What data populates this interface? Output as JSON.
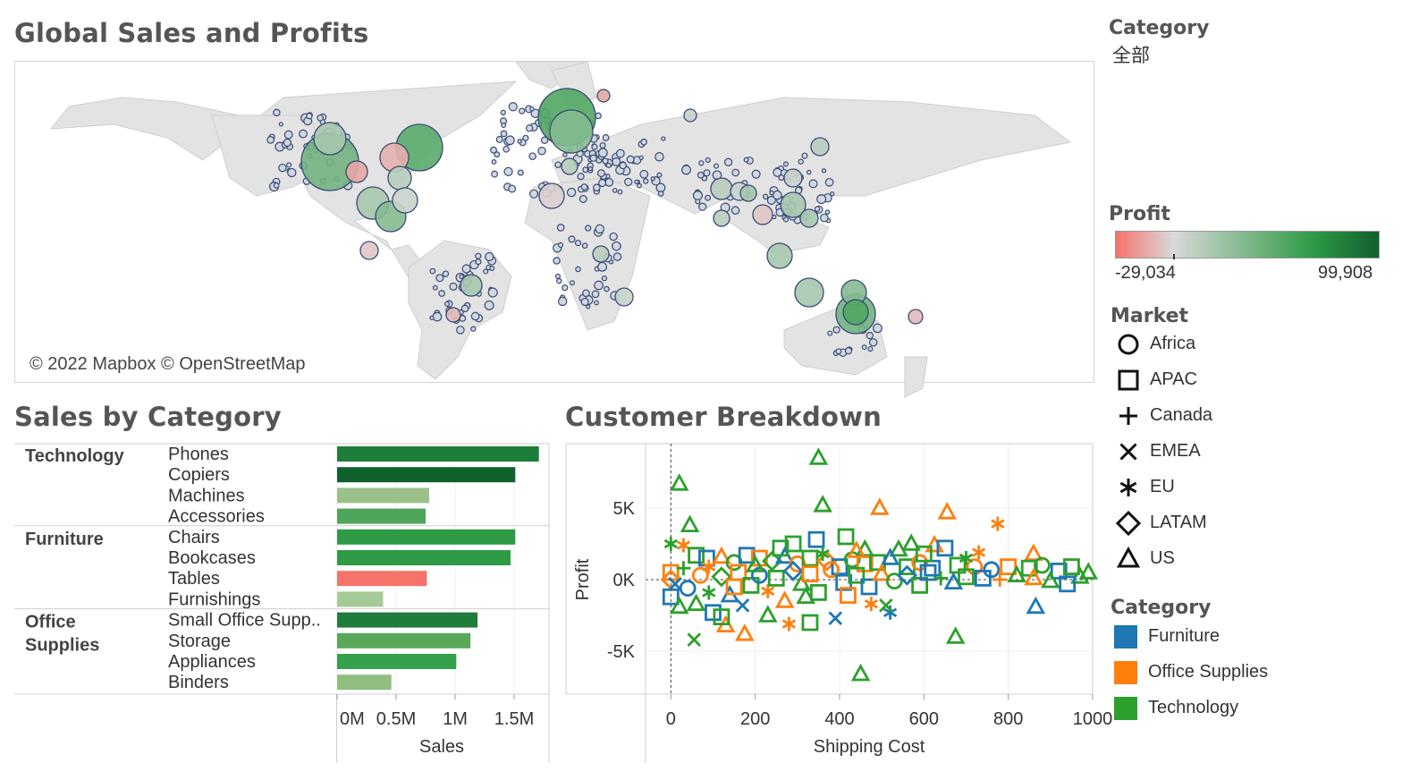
{
  "titles": {
    "map": "Global Sales and Profits",
    "bar": "Sales by Category",
    "scatter": "Customer Breakdown"
  },
  "map": {
    "attribution": "© 2022 Mapbox © OpenStreetMap"
  },
  "filter": {
    "title": "Category",
    "value": "全部"
  },
  "profit_legend": {
    "title": "Profit",
    "min_label": "-29,034",
    "max_label": "99,908",
    "colors": [
      "#f5736b",
      "#d9d9d9",
      "#2e9a46",
      "#10602e"
    ]
  },
  "market_legend": {
    "title": "Market",
    "items": [
      {
        "label": "Africa",
        "shape": "circle-icon"
      },
      {
        "label": "APAC",
        "shape": "square-icon"
      },
      {
        "label": "Canada",
        "shape": "plus-icon"
      },
      {
        "label": "EMEA",
        "shape": "cross-icon"
      },
      {
        "label": "EU",
        "shape": "asterisk-icon"
      },
      {
        "label": "LATAM",
        "shape": "diamond-icon"
      },
      {
        "label": "US",
        "shape": "triangle-icon"
      }
    ]
  },
  "category_legend": {
    "title": "Category",
    "items": [
      {
        "label": "Furniture",
        "color": "#1f77b4"
      },
      {
        "label": "Office Supplies",
        "color": "#ff7f0e"
      },
      {
        "label": "Technology",
        "color": "#2ca02c"
      }
    ]
  },
  "chart_data": [
    {
      "type": "bar",
      "orientation": "horizontal",
      "title": "Sales by Category",
      "xlabel": "Sales",
      "xlim": [
        0,
        1.8
      ],
      "xticks": [
        "0M",
        "0.5M",
        "1M",
        "1.5M"
      ],
      "groups": [
        {
          "name": "Technology",
          "items": [
            {
              "label": "Phones",
              "sales": 1.71,
              "color": "#1e7d3a"
            },
            {
              "label": "Copiers",
              "sales": 1.51,
              "color": "#10602e"
            },
            {
              "label": "Machines",
              "sales": 0.78,
              "color": "#9ac18a"
            },
            {
              "label": "Accessories",
              "sales": 0.75,
              "color": "#4ea55a"
            }
          ]
        },
        {
          "name": "Furniture",
          "items": [
            {
              "label": "Chairs",
              "sales": 1.51,
              "color": "#2e9a46"
            },
            {
              "label": "Bookcases",
              "sales": 1.47,
              "color": "#2e9a46"
            },
            {
              "label": "Tables",
              "sales": 0.76,
              "color": "#f5736b"
            },
            {
              "label": "Furnishings",
              "sales": 0.39,
              "color": "#a6c998"
            }
          ]
        },
        {
          "name": "Office Supplies",
          "items": [
            {
              "label": "Small Office Supp..",
              "sales": 1.19,
              "color": "#1e7d3a"
            },
            {
              "label": "Storage",
              "sales": 1.13,
              "color": "#5aa95a"
            },
            {
              "label": "Appliances",
              "sales": 1.01,
              "color": "#34a14b"
            },
            {
              "label": "Binders",
              "sales": 0.46,
              "color": "#8fbe7f"
            }
          ]
        }
      ]
    },
    {
      "type": "scatter",
      "title": "Customer Breakdown",
      "xlabel": "Shipping Cost",
      "ylabel": "Profit",
      "xlim": [
        -60,
        1000
      ],
      "ylim": [
        -8000,
        9500
      ],
      "xticks": [
        "0",
        "200",
        "400",
        "600",
        "800",
        "1000"
      ],
      "yticks": [
        "5K",
        "0K",
        "-5K"
      ],
      "grid": true,
      "legend": "right",
      "points": [
        {
          "x": 350,
          "y": 8500,
          "series": "Technology",
          "shape": "triangle"
        },
        {
          "x": 20,
          "y": 6700,
          "series": "Technology",
          "shape": "triangle"
        },
        {
          "x": 45,
          "y": 3800,
          "series": "Technology",
          "shape": "triangle"
        },
        {
          "x": 360,
          "y": 5200,
          "series": "Technology",
          "shape": "triangle"
        },
        {
          "x": 495,
          "y": 5000,
          "series": "Office Supplies",
          "shape": "triangle"
        },
        {
          "x": 655,
          "y": 4700,
          "series": "Office Supplies",
          "shape": "triangle"
        },
        {
          "x": 775,
          "y": 3900,
          "series": "Office Supplies",
          "shape": "asterisk"
        },
        {
          "x": 415,
          "y": 3000,
          "series": "Technology",
          "shape": "square"
        },
        {
          "x": 345,
          "y": 2800,
          "series": "Furniture",
          "shape": "square"
        },
        {
          "x": 290,
          "y": 2500,
          "series": "Technology",
          "shape": "square"
        },
        {
          "x": 0,
          "y": 2500,
          "series": "Technology",
          "shape": "asterisk"
        },
        {
          "x": 30,
          "y": 2400,
          "series": "Office Supplies",
          "shape": "asterisk"
        },
        {
          "x": 570,
          "y": 2500,
          "series": "Technology",
          "shape": "triangle"
        },
        {
          "x": 625,
          "y": 2400,
          "series": "Office Supplies",
          "shape": "triangle"
        },
        {
          "x": 650,
          "y": 2200,
          "series": "Furniture",
          "shape": "square"
        },
        {
          "x": 730,
          "y": 1900,
          "series": "Office Supplies",
          "shape": "asterisk"
        },
        {
          "x": 860,
          "y": 1800,
          "series": "Office Supplies",
          "shape": "triangle"
        },
        {
          "x": 540,
          "y": 2100,
          "series": "Technology",
          "shape": "triangle"
        },
        {
          "x": 460,
          "y": 2100,
          "series": "Technology",
          "shape": "triangle"
        },
        {
          "x": 60,
          "y": 1700,
          "series": "Technology",
          "shape": "square"
        },
        {
          "x": 85,
          "y": 1500,
          "series": "Furniture",
          "shape": "square"
        },
        {
          "x": 120,
          "y": 1600,
          "series": "Office Supplies",
          "shape": "triangle"
        },
        {
          "x": 150,
          "y": 1200,
          "series": "Technology",
          "shape": "circle"
        },
        {
          "x": 180,
          "y": 1700,
          "series": "Furniture",
          "shape": "square"
        },
        {
          "x": 210,
          "y": 1500,
          "series": "Office Supplies",
          "shape": "square"
        },
        {
          "x": 240,
          "y": 1300,
          "series": "Technology",
          "shape": "diamond"
        },
        {
          "x": 270,
          "y": 1600,
          "series": "Furniture",
          "shape": "triangle"
        },
        {
          "x": 300,
          "y": 1100,
          "series": "Office Supplies",
          "shape": "circle"
        },
        {
          "x": 330,
          "y": 1500,
          "series": "Technology",
          "shape": "square"
        },
        {
          "x": 370,
          "y": 1300,
          "series": "Office Supplies",
          "shape": "diamond"
        },
        {
          "x": 400,
          "y": 900,
          "series": "Furniture",
          "shape": "square"
        },
        {
          "x": 430,
          "y": 1400,
          "series": "Technology",
          "shape": "circle"
        },
        {
          "x": 460,
          "y": 1100,
          "series": "Office Supplies",
          "shape": "square"
        },
        {
          "x": 490,
          "y": 1200,
          "series": "Technology",
          "shape": "square"
        },
        {
          "x": 520,
          "y": 1500,
          "series": "Furniture",
          "shape": "triangle"
        },
        {
          "x": 560,
          "y": 900,
          "series": "Technology",
          "shape": "square"
        },
        {
          "x": 590,
          "y": 1200,
          "series": "Office Supplies",
          "shape": "circle"
        },
        {
          "x": 620,
          "y": 800,
          "series": "Furniture",
          "shape": "square"
        },
        {
          "x": 680,
          "y": 1000,
          "series": "Technology",
          "shape": "square"
        },
        {
          "x": 720,
          "y": 900,
          "series": "Office Supplies",
          "shape": "circle"
        },
        {
          "x": 760,
          "y": 700,
          "series": "Furniture",
          "shape": "circle"
        },
        {
          "x": 800,
          "y": 900,
          "series": "Office Supplies",
          "shape": "square"
        },
        {
          "x": 850,
          "y": 800,
          "series": "Technology",
          "shape": "square"
        },
        {
          "x": 880,
          "y": 1000,
          "series": "Technology",
          "shape": "circle"
        },
        {
          "x": 920,
          "y": 600,
          "series": "Furniture",
          "shape": "square"
        },
        {
          "x": 950,
          "y": 900,
          "series": "Technology",
          "shape": "square"
        },
        {
          "x": 990,
          "y": 500,
          "series": "Technology",
          "shape": "triangle"
        },
        {
          "x": 970,
          "y": 200,
          "series": "Technology",
          "shape": "triangle"
        },
        {
          "x": 0,
          "y": 500,
          "series": "Office Supplies",
          "shape": "square"
        },
        {
          "x": 0,
          "y": 0,
          "series": "Office Supplies",
          "shape": "diamond"
        },
        {
          "x": 10,
          "y": -300,
          "series": "Furniture",
          "shape": "cross"
        },
        {
          "x": 0,
          "y": -1200,
          "series": "Furniture",
          "shape": "square"
        },
        {
          "x": 30,
          "y": 800,
          "series": "Technology",
          "shape": "plus"
        },
        {
          "x": 40,
          "y": -600,
          "series": "Furniture",
          "shape": "circle"
        },
        {
          "x": 60,
          "y": -1700,
          "series": "Technology",
          "shape": "triangle"
        },
        {
          "x": 70,
          "y": 300,
          "series": "Office Supplies",
          "shape": "circle"
        },
        {
          "x": 90,
          "y": -900,
          "series": "Technology",
          "shape": "asterisk"
        },
        {
          "x": 100,
          "y": -2300,
          "series": "Furniture",
          "shape": "square"
        },
        {
          "x": 120,
          "y": 200,
          "series": "Technology",
          "shape": "diamond"
        },
        {
          "x": 140,
          "y": -1100,
          "series": "Furniture",
          "shape": "triangle"
        },
        {
          "x": 160,
          "y": 500,
          "series": "Office Supplies",
          "shape": "square"
        },
        {
          "x": 170,
          "y": -1800,
          "series": "Furniture",
          "shape": "cross"
        },
        {
          "x": 190,
          "y": -400,
          "series": "Technology",
          "shape": "square"
        },
        {
          "x": 210,
          "y": 300,
          "series": "Furniture",
          "shape": "circle"
        },
        {
          "x": 230,
          "y": -800,
          "series": "Office Supplies",
          "shape": "asterisk"
        },
        {
          "x": 250,
          "y": 100,
          "series": "Technology",
          "shape": "square"
        },
        {
          "x": 270,
          "y": -1500,
          "series": "Office Supplies",
          "shape": "triangle"
        },
        {
          "x": 290,
          "y": 600,
          "series": "Furniture",
          "shape": "diamond"
        },
        {
          "x": 310,
          "y": -300,
          "series": "Technology",
          "shape": "triangle"
        },
        {
          "x": 330,
          "y": 400,
          "series": "Office Supplies",
          "shape": "square"
        },
        {
          "x": 350,
          "y": -900,
          "series": "Technology",
          "shape": "square"
        },
        {
          "x": 380,
          "y": 700,
          "series": "Office Supplies",
          "shape": "circle"
        },
        {
          "x": 410,
          "y": -200,
          "series": "Furniture",
          "shape": "square"
        },
        {
          "x": 440,
          "y": 300,
          "series": "Technology",
          "shape": "square"
        },
        {
          "x": 470,
          "y": -500,
          "series": "Furniture",
          "shape": "square"
        },
        {
          "x": 500,
          "y": 400,
          "series": "Office Supplies",
          "shape": "triangle"
        },
        {
          "x": 530,
          "y": -100,
          "series": "Technology",
          "shape": "circle"
        },
        {
          "x": 560,
          "y": 300,
          "series": "Furniture",
          "shape": "diamond"
        },
        {
          "x": 590,
          "y": -400,
          "series": "Technology",
          "shape": "square"
        },
        {
          "x": 610,
          "y": 500,
          "series": "Furniture",
          "shape": "square"
        },
        {
          "x": 640,
          "y": 100,
          "series": "Technology",
          "shape": "plus"
        },
        {
          "x": 670,
          "y": -200,
          "series": "Furniture",
          "shape": "triangle"
        },
        {
          "x": 700,
          "y": 200,
          "series": "Technology",
          "shape": "square"
        },
        {
          "x": 740,
          "y": 100,
          "series": "Furniture",
          "shape": "square"
        },
        {
          "x": 780,
          "y": 0,
          "series": "Office Supplies",
          "shape": "plus"
        },
        {
          "x": 820,
          "y": 300,
          "series": "Technology",
          "shape": "triangle"
        },
        {
          "x": 860,
          "y": 100,
          "series": "Office Supplies",
          "shape": "triangle"
        },
        {
          "x": 900,
          "y": -100,
          "series": "Technology",
          "shape": "triangle"
        },
        {
          "x": 940,
          "y": -300,
          "series": "Furniture",
          "shape": "square"
        },
        {
          "x": 865,
          "y": -1900,
          "series": "Furniture",
          "shape": "triangle"
        },
        {
          "x": 675,
          "y": -4000,
          "series": "Technology",
          "shape": "triangle"
        },
        {
          "x": 450,
          "y": -6600,
          "series": "Technology",
          "shape": "triangle"
        },
        {
          "x": 55,
          "y": -4200,
          "series": "Technology",
          "shape": "cross"
        },
        {
          "x": 130,
          "y": -3200,
          "series": "Office Supplies",
          "shape": "triangle"
        },
        {
          "x": 175,
          "y": -3800,
          "series": "Office Supplies",
          "shape": "triangle"
        },
        {
          "x": 280,
          "y": -3100,
          "series": "Office Supplies",
          "shape": "asterisk"
        },
        {
          "x": 330,
          "y": -3000,
          "series": "Technology",
          "shape": "square"
        },
        {
          "x": 390,
          "y": -2700,
          "series": "Furniture",
          "shape": "cross"
        },
        {
          "x": 520,
          "y": -2300,
          "series": "Furniture",
          "shape": "asterisk"
        },
        {
          "x": 510,
          "y": -1800,
          "series": "Technology",
          "shape": "cross"
        },
        {
          "x": 475,
          "y": -1700,
          "series": "Office Supplies",
          "shape": "asterisk"
        },
        {
          "x": 230,
          "y": -2500,
          "series": "Technology",
          "shape": "triangle"
        },
        {
          "x": 120,
          "y": -2600,
          "series": "Technology",
          "shape": "square"
        },
        {
          "x": 20,
          "y": -1900,
          "series": "Technology",
          "shape": "triangle"
        },
        {
          "x": 200,
          "y": 1000,
          "series": "Technology",
          "shape": "triangle"
        },
        {
          "x": 260,
          "y": 2200,
          "series": "Technology",
          "shape": "square"
        },
        {
          "x": 440,
          "y": 2000,
          "series": "Office Supplies",
          "shape": "triangle"
        },
        {
          "x": 600,
          "y": 1800,
          "series": "Technology",
          "shape": "square"
        },
        {
          "x": 90,
          "y": 900,
          "series": "Office Supplies",
          "shape": "asterisk"
        },
        {
          "x": 150,
          "y": -500,
          "series": "Office Supplies",
          "shape": "square"
        },
        {
          "x": 320,
          "y": -1200,
          "series": "Technology",
          "shape": "triangle"
        },
        {
          "x": 420,
          "y": -1100,
          "series": "Office Supplies",
          "shape": "square"
        },
        {
          "x": 360,
          "y": 1800,
          "series": "Technology",
          "shape": "asterisk"
        },
        {
          "x": 700,
          "y": 1500,
          "series": "Technology",
          "shape": "asterisk"
        }
      ]
    }
  ]
}
